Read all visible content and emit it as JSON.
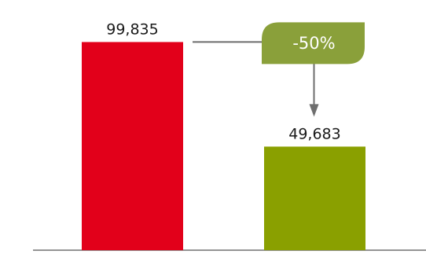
{
  "chart_data": {
    "type": "bar",
    "categories": [
      "",
      ""
    ],
    "values": [
      99835,
      49683
    ],
    "value_labels": [
      "99,835",
      "49,683"
    ],
    "colors": [
      "#e2001a",
      "#8aa000"
    ],
    "ylim": [
      0,
      120000
    ],
    "grid": false,
    "annotation": {
      "text": "-50%",
      "from_index": 0,
      "to_index": 1,
      "badge_color": "#8aa03a",
      "connector_color": "#6e6e6e"
    }
  }
}
